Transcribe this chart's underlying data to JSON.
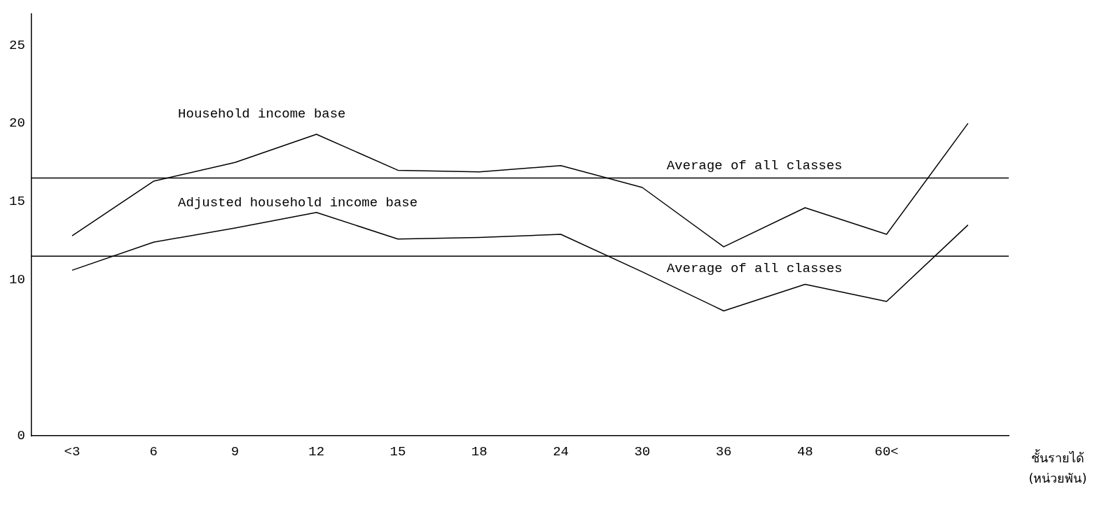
{
  "chart_data": {
    "type": "line",
    "xlabel": "ชั้นรายได้ (หน่วยพัน)",
    "categories": [
      "<3",
      "6",
      "9",
      "12",
      "15",
      "18",
      "24",
      "30",
      "36",
      "48",
      "60<",
      null
    ],
    "series": [
      {
        "name": "Household income base",
        "color": "#000000",
        "values": [
          12.8,
          16.3,
          17.5,
          19.3,
          17.0,
          16.9,
          17.3,
          15.9,
          12.1,
          14.6,
          12.9,
          20.0
        ]
      },
      {
        "name": "Adjusted household income base",
        "color": "#000000",
        "values": [
          10.6,
          12.4,
          13.3,
          14.3,
          12.6,
          12.7,
          12.9,
          10.5,
          8.0,
          9.7,
          8.6,
          13.5
        ]
      }
    ],
    "ylim": [
      0,
      27
    ],
    "yticks": [
      0,
      10,
      15,
      20,
      25
    ],
    "ref_lines": [
      {
        "axis": "y",
        "value": 16.5,
        "label": "Average of all classes",
        "color": "#000000"
      },
      {
        "axis": "y",
        "value": 11.5,
        "label": "Average of all classes",
        "color": "#000000"
      }
    ],
    "grid": false,
    "legend": false,
    "marker": "none",
    "line_style": "solid"
  }
}
